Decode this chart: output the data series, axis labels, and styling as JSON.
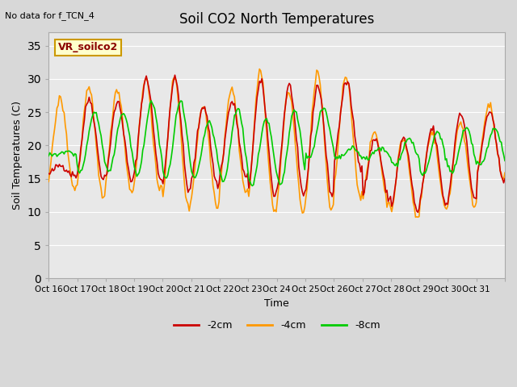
{
  "title": "Soil CO2 North Temperatures",
  "no_data_label": "No data for f_TCN_4",
  "station_label": "VR_soilco2",
  "xlabel": "Time",
  "ylabel": "Soil Temperatures (C)",
  "ylim": [
    0,
    37
  ],
  "yticks": [
    0,
    5,
    10,
    15,
    20,
    25,
    30,
    35
  ],
  "x_tick_labels": [
    "Oct 16",
    "Oct 17",
    "Oct 18",
    "Oct 19",
    "Oct 20",
    "Oct 21",
    "Oct 22",
    "Oct 23",
    "Oct 24",
    "Oct 25",
    "Oct 26",
    "Oct 27",
    "Oct 28",
    "Oct 29",
    "Oct 30",
    "Oct 31",
    ""
  ],
  "colors": {
    "neg2cm": "#cc0000",
    "neg4cm": "#ff9900",
    "neg8cm": "#00cc00",
    "fig_bg": "#d8d8d8",
    "ax_bg": "#e8e8e8",
    "grid": "#ffffff",
    "station_box_bg": "#ffffcc",
    "station_box_border": "#cc9900"
  },
  "legend": [
    {
      "label": "-2cm",
      "color": "#cc0000"
    },
    {
      "label": "-4cm",
      "color": "#ff9900"
    },
    {
      "label": "-8cm",
      "color": "#00cc00"
    }
  ],
  "daily_max_4cm": [
    27,
    28.5,
    28.5,
    30,
    30,
    26,
    28.5,
    31,
    28,
    31,
    30.5,
    22,
    21,
    22,
    23.5,
    26
  ],
  "daily_min_4cm": [
    13.5,
    12.5,
    13,
    13,
    10.5,
    11,
    13,
    10,
    10,
    10,
    12.5,
    11,
    9,
    10.5,
    11,
    15
  ],
  "daily_max_2cm": [
    17,
    27,
    26.5,
    30,
    30,
    26,
    26.5,
    29.5,
    29,
    29,
    29.5,
    21,
    21,
    22.5,
    25,
    25
  ],
  "daily_min_2cm": [
    15.5,
    15,
    14.5,
    15,
    13,
    14,
    15,
    12.5,
    12.5,
    12.5,
    17,
    12,
    10,
    11,
    12,
    15
  ],
  "daily_max_8cm": [
    19,
    25,
    25,
    26.5,
    26.5,
    23.5,
    25.5,
    24,
    25.5,
    25.5,
    19.5,
    19.5,
    21,
    22,
    22.5,
    22.5
  ],
  "daily_min_8cm": [
    18.5,
    16,
    16,
    15.5,
    15,
    15,
    14.5,
    14,
    14,
    18,
    18,
    18,
    17,
    15.5,
    16,
    17
  ],
  "phase_2cm": 0.0,
  "phase_4cm": 0.1,
  "phase_8cm": -1.2,
  "n_days": 16,
  "n_per_day": 24,
  "noise_seed": 42,
  "linewidth": 1.2
}
